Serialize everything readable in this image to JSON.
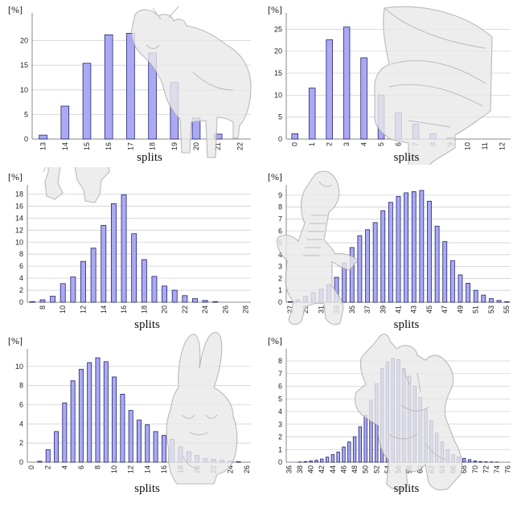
{
  "chart_data": [
    {
      "id": "cow",
      "type": "bar",
      "unit_label": "[%]",
      "xlabel": "splits",
      "categories": [
        "13",
        "14",
        "15",
        "16",
        "17",
        "18",
        "19",
        "20",
        "21",
        "22"
      ],
      "values": [
        0.8,
        6.7,
        15.4,
        21.2,
        21.5,
        17.5,
        11.5,
        4.3,
        1.0,
        0
      ],
      "ylim": [
        0,
        25
      ],
      "yticks": [
        0,
        5,
        10,
        15,
        20
      ],
      "xtick_labels": [
        "13",
        "14",
        "15",
        "16",
        "17",
        "18",
        "19",
        "20",
        "21",
        "22"
      ],
      "grid": true,
      "model": "cow"
    },
    {
      "id": "fandisk",
      "type": "bar",
      "unit_label": "[%]",
      "xlabel": "splits",
      "categories": [
        "0",
        "1",
        "2",
        "3",
        "4",
        "5",
        "6",
        "7",
        "8",
        "9",
        "10",
        "11",
        "12"
      ],
      "values": [
        1.2,
        11.6,
        22.6,
        25.5,
        18.5,
        10.0,
        6.0,
        3.4,
        1.2,
        0.3,
        0,
        0,
        0
      ],
      "ylim": [
        0,
        28
      ],
      "yticks": [
        0,
        5,
        10,
        15,
        20,
        25
      ],
      "xtick_labels": [
        "0",
        "1",
        "2",
        "3",
        "4",
        "5",
        "6",
        "7",
        "8",
        "9",
        "10",
        "11",
        "12"
      ],
      "grid": true,
      "model": "fandisk"
    },
    {
      "id": "horse",
      "type": "bar",
      "unit_label": "[%]",
      "xlabel": "splits",
      "categories": [
        "7",
        "8",
        "9",
        "10",
        "11",
        "12",
        "13",
        "14",
        "15",
        "16",
        "17",
        "18",
        "19",
        "20",
        "21",
        "22",
        "23",
        "24",
        "25",
        "26",
        "27",
        "28"
      ],
      "values": [
        0.1,
        0.4,
        1.0,
        3.1,
        4.2,
        6.8,
        9.0,
        12.8,
        16.4,
        17.9,
        11.4,
        7.1,
        4.3,
        2.7,
        2.0,
        1.1,
        0.6,
        0.3,
        0.1,
        0,
        0,
        0
      ],
      "ylim": [
        0,
        19
      ],
      "yticks": [
        0,
        2,
        4,
        6,
        8,
        10,
        12,
        14,
        16,
        18
      ],
      "xtick_labels": [
        "8",
        "10",
        "12",
        "14",
        "16",
        "18",
        "20",
        "22",
        "24",
        "26",
        "28"
      ],
      "grid": true,
      "model": "horse"
    },
    {
      "id": "dinosaur",
      "type": "bar",
      "unit_label": "[%]",
      "xlabel": "splits",
      "categories": [
        "27",
        "28",
        "29",
        "30",
        "31",
        "32",
        "33",
        "34",
        "35",
        "36",
        "37",
        "38",
        "39",
        "40",
        "41",
        "42",
        "43",
        "44",
        "45",
        "46",
        "47",
        "48",
        "49",
        "50",
        "51",
        "52",
        "53",
        "54",
        "55"
      ],
      "values": [
        0.05,
        0.2,
        0.5,
        0.8,
        1.1,
        1.5,
        2.1,
        3.3,
        4.6,
        5.6,
        6.1,
        6.7,
        7.7,
        8.4,
        8.9,
        9.2,
        9.3,
        9.4,
        8.5,
        6.4,
        5.1,
        3.5,
        2.3,
        1.6,
        1.0,
        0.6,
        0.3,
        0.15,
        0.05
      ],
      "ylim": [
        0,
        9.6
      ],
      "yticks": [
        0,
        1,
        2,
        3,
        4,
        5,
        6,
        7,
        8,
        9
      ],
      "xtick_labels": [
        "27",
        "29",
        "31",
        "33",
        "35",
        "37",
        "39",
        "41",
        "43",
        "45",
        "47",
        "49",
        "51",
        "53",
        "55"
      ],
      "grid": true,
      "model": "dinosaur"
    },
    {
      "id": "bunny",
      "type": "bar",
      "unit_label": "[%]",
      "xlabel": "splits",
      "categories": [
        "0",
        "1",
        "2",
        "3",
        "4",
        "5",
        "6",
        "7",
        "8",
        "9",
        "10",
        "11",
        "12",
        "13",
        "14",
        "15",
        "16",
        "17",
        "18",
        "19",
        "20",
        "21",
        "22",
        "23",
        "24",
        "25",
        "26"
      ],
      "values": [
        0,
        0.1,
        1.3,
        3.2,
        6.2,
        8.5,
        9.7,
        10.4,
        10.9,
        10.5,
        8.9,
        7.1,
        5.4,
        4.4,
        3.9,
        3.2,
        2.8,
        2.4,
        1.6,
        1.1,
        0.7,
        0.4,
        0.3,
        0.2,
        0.1,
        0.05,
        0
      ],
      "ylim": [
        0,
        11.5
      ],
      "yticks": [
        0,
        2,
        4,
        6,
        8,
        10
      ],
      "xtick_labels": [
        "0",
        "2",
        "4",
        "6",
        "8",
        "10",
        "12",
        "14",
        "16",
        "18",
        "20",
        "22",
        "24",
        "26"
      ],
      "grid": true,
      "model": "bunny"
    },
    {
      "id": "armadillo",
      "type": "bar",
      "unit_label": "[%]",
      "xlabel": "splits",
      "categories": [
        "36",
        "37",
        "38",
        "39",
        "40",
        "41",
        "42",
        "43",
        "44",
        "45",
        "46",
        "47",
        "48",
        "49",
        "50",
        "51",
        "52",
        "53",
        "54",
        "55",
        "56",
        "57",
        "58",
        "59",
        "60",
        "61",
        "62",
        "63",
        "64",
        "65",
        "66",
        "67",
        "68",
        "69",
        "70",
        "71",
        "72",
        "73",
        "74",
        "75",
        "76"
      ],
      "values": [
        0,
        0,
        0.02,
        0.05,
        0.1,
        0.15,
        0.25,
        0.4,
        0.6,
        0.8,
        1.2,
        1.6,
        2.0,
        2.8,
        3.7,
        4.9,
        6.2,
        7.4,
        7.9,
        8.2,
        8.1,
        7.4,
        6.8,
        6.0,
        5.1,
        4.2,
        3.3,
        2.3,
        1.6,
        1.0,
        0.6,
        0.4,
        0.3,
        0.2,
        0.1,
        0.05,
        0.03,
        0.02,
        0.01,
        0,
        0
      ],
      "ylim": [
        0,
        8.7
      ],
      "yticks": [
        0,
        1,
        2,
        3,
        4,
        5,
        6,
        7,
        8
      ],
      "xtick_labels": [
        "36",
        "38",
        "40",
        "42",
        "44",
        "46",
        "48",
        "50",
        "52",
        "54",
        "56",
        "58",
        "60",
        "62",
        "64",
        "66",
        "68",
        "70",
        "72",
        "74",
        "76"
      ],
      "grid": true,
      "model": "armadillo"
    }
  ]
}
